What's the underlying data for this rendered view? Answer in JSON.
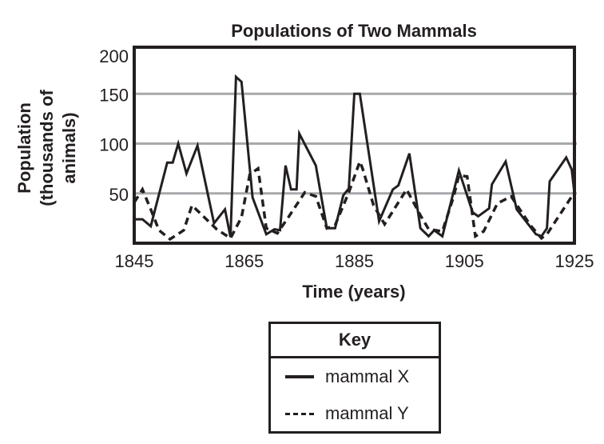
{
  "chart_data": {
    "type": "line",
    "title": "Populations of Two Mammals",
    "xlabel": "Time (years)",
    "ylabel_lines": [
      "Population",
      "(thousands of",
      "animals)"
    ],
    "ylabel": "Population (thousands of animals)",
    "xlim": [
      1845,
      1925
    ],
    "ylim": [
      0,
      200
    ],
    "x_ticks": [
      1845,
      1865,
      1885,
      1905,
      1925
    ],
    "x_tick_labels": [
      "1845",
      "1865",
      "1885",
      "1905",
      "1925"
    ],
    "y_ticks": [
      50,
      100,
      150,
      200
    ],
    "y_tick_labels": [
      "50",
      "100",
      "150",
      "200"
    ],
    "grid": "horizontal at 50, 100, 150",
    "legend": {
      "title": "Key",
      "placement": "bottom-center, below chart",
      "entries": [
        {
          "label": "mammal X",
          "style": "solid"
        },
        {
          "label": "mammal Y",
          "style": "dashed"
        }
      ]
    },
    "series": [
      {
        "name": "mammal X",
        "style": "solid",
        "points": [
          [
            1845,
            24
          ],
          [
            1846.5,
            24
          ],
          [
            1848,
            17
          ],
          [
            1851,
            81
          ],
          [
            1852,
            81
          ],
          [
            1853,
            100
          ],
          [
            1854.5,
            70
          ],
          [
            1856.5,
            98
          ],
          [
            1859.5,
            20
          ],
          [
            1861.5,
            34
          ],
          [
            1862.5,
            6
          ],
          [
            1863.5,
            167
          ],
          [
            1864.5,
            162
          ],
          [
            1866.5,
            46
          ],
          [
            1869,
            9
          ],
          [
            1870.5,
            14
          ],
          [
            1871.5,
            13
          ],
          [
            1872.5,
            78
          ],
          [
            1873.5,
            54
          ],
          [
            1874.5,
            54
          ],
          [
            1875,
            110
          ],
          [
            1878,
            78
          ],
          [
            1880,
            15
          ],
          [
            1881.5,
            15
          ],
          [
            1883,
            48
          ],
          [
            1884,
            55
          ],
          [
            1885,
            150
          ],
          [
            1886,
            150
          ],
          [
            1889.5,
            22
          ],
          [
            1892,
            54
          ],
          [
            1893,
            58
          ],
          [
            1895,
            90
          ],
          [
            1897,
            15
          ],
          [
            1898.5,
            7
          ],
          [
            1899.5,
            13
          ],
          [
            1901,
            7
          ],
          [
            1904,
            73
          ],
          [
            1906.5,
            31
          ],
          [
            1907.5,
            27
          ],
          [
            1909.5,
            35
          ],
          [
            1910,
            59
          ],
          [
            1912.5,
            82
          ],
          [
            1914.5,
            34
          ],
          [
            1918,
            9
          ],
          [
            1919,
            7
          ],
          [
            1920,
            15
          ],
          [
            1920.5,
            62
          ],
          [
            1923.5,
            86
          ],
          [
            1924.5,
            74
          ],
          [
            1925,
            50
          ]
        ]
      },
      {
        "name": "mammal Y",
        "style": "dashed",
        "points": [
          [
            1845,
            41
          ],
          [
            1846.5,
            54
          ],
          [
            1848,
            34
          ],
          [
            1849.5,
            13
          ],
          [
            1851.5,
            4
          ],
          [
            1854,
            13
          ],
          [
            1855.5,
            38
          ],
          [
            1857,
            30
          ],
          [
            1860,
            14
          ],
          [
            1862.5,
            5
          ],
          [
            1864.5,
            26
          ],
          [
            1866,
            69
          ],
          [
            1867.5,
            75
          ],
          [
            1869,
            15
          ],
          [
            1871,
            10
          ],
          [
            1873,
            26
          ],
          [
            1876,
            51
          ],
          [
            1878,
            47
          ],
          [
            1880,
            15
          ],
          [
            1881.5,
            18
          ],
          [
            1884,
            51
          ],
          [
            1886,
            82
          ],
          [
            1886.5,
            75
          ],
          [
            1888.5,
            38
          ],
          [
            1890.5,
            19
          ],
          [
            1894.5,
            54
          ],
          [
            1897,
            28
          ],
          [
            1898.5,
            14
          ],
          [
            1901,
            12
          ],
          [
            1903,
            46
          ],
          [
            1904,
            68
          ],
          [
            1905.5,
            67
          ],
          [
            1907,
            7
          ],
          [
            1908.5,
            12
          ],
          [
            1911,
            40
          ],
          [
            1913.5,
            47
          ],
          [
            1917,
            18
          ],
          [
            1919,
            5
          ],
          [
            1920,
            9
          ],
          [
            1925,
            51
          ]
        ]
      }
    ]
  },
  "colors": {
    "ink": "#231f20",
    "grid": "#a7a9ac",
    "background": "#ffffff"
  }
}
